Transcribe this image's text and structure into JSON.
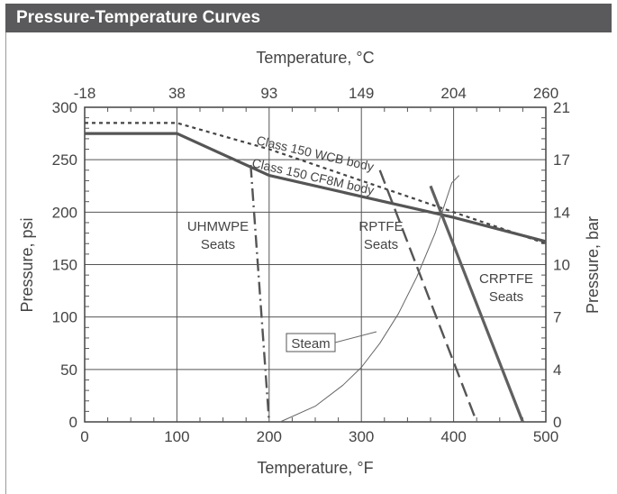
{
  "header": {
    "title": "Pressure-Temperature Curves"
  },
  "chart_data": {
    "type": "line",
    "xlabel": "Temperature, °F",
    "x2label": "Temperature, °C",
    "ylabel": "Pressure, psi",
    "y2label": "Pressure, bar",
    "xlim": [
      0,
      500
    ],
    "ylim": [
      0,
      300
    ],
    "grid": true,
    "x_ticks": [
      "0",
      "100",
      "200",
      "300",
      "400",
      "500"
    ],
    "x2_ticks": [
      "-18",
      "38",
      "93",
      "149",
      "204",
      "260"
    ],
    "y_ticks": [
      "0",
      "50",
      "100",
      "150",
      "200",
      "250",
      "300"
    ],
    "y2_ticks": [
      "0",
      "4",
      "7",
      "10",
      "14",
      "17",
      "21"
    ],
    "series": [
      {
        "name": "Class 150 WCB body",
        "style": "dotted",
        "color": "#444444",
        "points": [
          [
            0,
            285
          ],
          [
            100,
            285
          ],
          [
            200,
            260
          ],
          [
            300,
            230
          ],
          [
            400,
            200
          ],
          [
            500,
            170
          ]
        ]
      },
      {
        "name": "Class 150 CF8M body",
        "style": "solid",
        "color": "#555555",
        "points": [
          [
            0,
            275
          ],
          [
            100,
            275
          ],
          [
            200,
            235
          ],
          [
            300,
            215
          ],
          [
            400,
            195
          ],
          [
            500,
            172
          ]
        ]
      },
      {
        "name": "UHMWPE",
        "style": "dashdot",
        "color": "#555555",
        "points": [
          [
            180,
            245
          ],
          [
            200,
            0
          ]
        ]
      },
      {
        "name": "RPTFE",
        "style": "dashed",
        "color": "#555555",
        "points": [
          [
            320,
            240
          ],
          [
            425,
            0
          ]
        ]
      },
      {
        "name": "CRPTFE",
        "style": "solid",
        "color": "#606060",
        "points": [
          [
            375,
            225
          ],
          [
            475,
            0
          ]
        ]
      },
      {
        "name": "Steam",
        "style": "thin",
        "color": "#666666",
        "points": [
          [
            212,
            0
          ],
          [
            250,
            15
          ],
          [
            280,
            35
          ],
          [
            300,
            52
          ],
          [
            320,
            75
          ],
          [
            340,
            103
          ],
          [
            360,
            138
          ],
          [
            380,
            180
          ],
          [
            398,
            228
          ],
          [
            406,
            235
          ]
        ]
      }
    ],
    "annotations": [
      {
        "text": "Class 150 WCB body"
      },
      {
        "text": "Class 150 CF8M body"
      },
      {
        "text": "UHMWPE"
      },
      {
        "text": "Seats"
      },
      {
        "text": "RPTFE"
      },
      {
        "text": "Seats"
      },
      {
        "text": "CRPTFE"
      },
      {
        "text": "Seats"
      },
      {
        "text": "Steam"
      }
    ]
  }
}
